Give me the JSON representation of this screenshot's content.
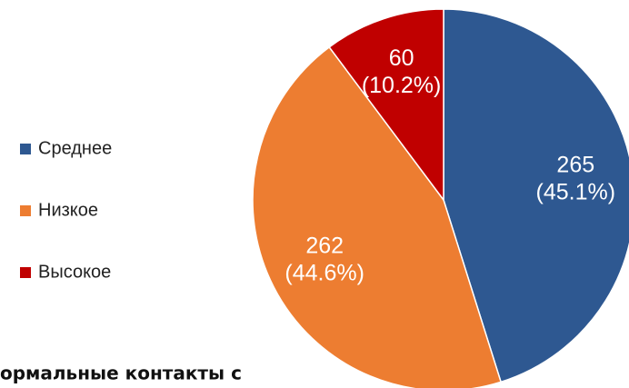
{
  "chart_data": {
    "type": "pie",
    "categories": [
      "Среднее",
      "Низкое",
      "Высокое"
    ],
    "values": [
      265,
      262,
      60
    ],
    "value_labels": [
      [
        "265",
        "(45.1%)"
      ],
      [
        "262",
        "(44.6%)"
      ],
      [
        "60",
        "(10.2%)"
      ]
    ],
    "colors": [
      "#2e5891",
      "#ed7d31",
      "#c00000"
    ],
    "legend": "left",
    "caption": "ормальные контакты с"
  }
}
